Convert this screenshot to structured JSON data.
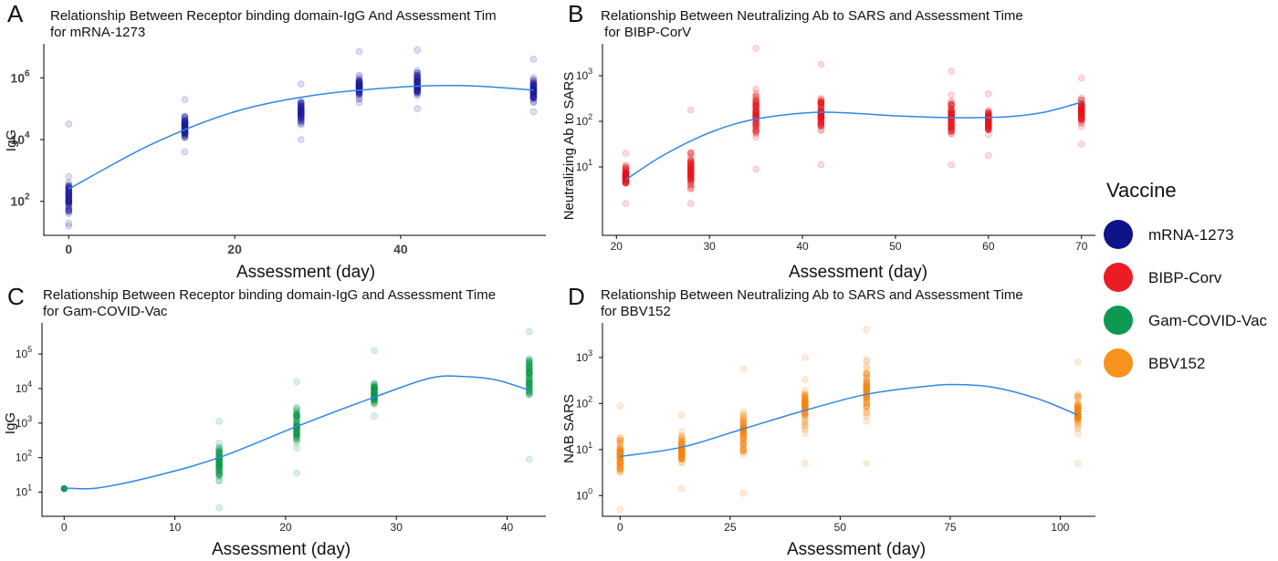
{
  "chart_data": [
    {
      "id": "A",
      "type": "scatter",
      "panel_letter": "A",
      "title_lines": [
        "Relationship Between Receptor binding domain-IgG And Assessment Tim",
        "for mRNA-1273"
      ],
      "xlabel": "Assessment (day)",
      "ylabel": "IgG",
      "color": "#1f1fa0",
      "point_alpha": 0.15,
      "xlim": [
        -3,
        57.5
      ],
      "ylim_log10": [
        0.9,
        7.1
      ],
      "y_scale": "log",
      "xticks": [
        0,
        20,
        40
      ],
      "yticks": [
        {
          "exp": 2,
          "label_base": "10",
          "label_exp": "2"
        },
        {
          "exp": 4,
          "label_base": "10",
          "label_exp": "4"
        },
        {
          "exp": 6,
          "label_base": "10",
          "label_exp": "6"
        }
      ],
      "groups": [
        {
          "x": 0,
          "log10_min": 1.2,
          "log10_max": 4.5,
          "log10_center": 2.1
        },
        {
          "x": 14,
          "log10_min": 3.6,
          "log10_max": 5.3,
          "log10_center": 4.4
        },
        {
          "x": 28,
          "log10_min": 4.0,
          "log10_max": 5.8,
          "log10_center": 4.9
        },
        {
          "x": 35,
          "log10_min": 5.2,
          "log10_max": 6.85,
          "log10_center": 5.7
        },
        {
          "x": 42,
          "log10_min": 5.0,
          "log10_max": 6.9,
          "log10_center": 5.8
        },
        {
          "x": 56,
          "log10_min": 4.9,
          "log10_max": 6.6,
          "log10_center": 5.6
        }
      ],
      "trend": [
        [
          0,
          2.4
        ],
        [
          10,
          3.85
        ],
        [
          20,
          4.9
        ],
        [
          30,
          5.45
        ],
        [
          40,
          5.7
        ],
        [
          46,
          5.75
        ],
        [
          50,
          5.72
        ],
        [
          56,
          5.6
        ]
      ]
    },
    {
      "id": "B",
      "type": "scatter",
      "panel_letter": "B",
      "title_lines": [
        "Relationship Between Neutralizing Ab to SARS and Assessment Time",
        " for BIBP-CorV"
      ],
      "xlabel": "Assessment (day)",
      "ylabel": "Neutralizing Ab to SARS",
      "color": "#e8131b",
      "point_alpha": 0.15,
      "xlim": [
        18.5,
        71.5
      ],
      "ylim_log10": [
        -0.5,
        3.7
      ],
      "y_scale": "log",
      "xticks": [
        20,
        30,
        40,
        50,
        60,
        70
      ],
      "yticks": [
        {
          "exp": 1,
          "label_base": "10",
          "label_exp": "1"
        },
        {
          "exp": 2,
          "label_base": "10",
          "label_exp": "2"
        },
        {
          "exp": 3,
          "label_base": "10",
          "label_exp": "3"
        }
      ],
      "groups": [
        {
          "x": 21,
          "log10_min": 0.2,
          "log10_max": 1.3,
          "log10_center": 0.8
        },
        {
          "x": 28,
          "log10_min": 0.2,
          "log10_max": 2.25,
          "log10_center": 0.9
        },
        {
          "x": 35,
          "log10_min": 0.95,
          "log10_max": 3.6,
          "log10_center": 2.1
        },
        {
          "x": 42,
          "log10_min": 1.05,
          "log10_max": 3.25,
          "log10_center": 2.1
        },
        {
          "x": 56,
          "log10_min": 1.05,
          "log10_max": 3.1,
          "log10_center": 2.1
        },
        {
          "x": 60,
          "log10_min": 1.25,
          "log10_max": 2.6,
          "log10_center": 2.0
        },
        {
          "x": 70,
          "log10_min": 1.5,
          "log10_max": 2.95,
          "log10_center": 2.2
        }
      ],
      "trend": [
        [
          21,
          0.72
        ],
        [
          25,
          1.25
        ],
        [
          30,
          1.75
        ],
        [
          35,
          2.05
        ],
        [
          42,
          2.2
        ],
        [
          50,
          2.12
        ],
        [
          56,
          2.08
        ],
        [
          62,
          2.1
        ],
        [
          66,
          2.2
        ],
        [
          70,
          2.42
        ]
      ]
    },
    {
      "id": "C",
      "type": "scatter",
      "panel_letter": "C",
      "title_lines": [
        "Relationship Between Receptor binding domain-IgG and Assessment Time",
        "for Gam-COVID-Vac"
      ],
      "xlabel": "Assessment (day)",
      "ylabel": "IgG",
      "color": "#0f9a4c",
      "point_alpha": 0.15,
      "xlim": [
        -2,
        43.5
      ],
      "ylim_log10": [
        0.3,
        5.9
      ],
      "y_scale": "log",
      "xticks": [
        0,
        10,
        20,
        30,
        40
      ],
      "yticks": [
        {
          "exp": 1,
          "label_base": "10",
          "label_exp": "1"
        },
        {
          "exp": 2,
          "label_base": "10",
          "label_exp": "2"
        },
        {
          "exp": 3,
          "label_base": "10",
          "label_exp": "3"
        },
        {
          "exp": 4,
          "label_base": "10",
          "label_exp": "4"
        },
        {
          "exp": 5,
          "label_base": "10",
          "label_exp": "5"
        }
      ],
      "groups": [
        {
          "x": 0,
          "log10_min": 1.1,
          "log10_max": 1.1,
          "log10_center": 1.1,
          "solid": true
        },
        {
          "x": 14,
          "log10_min": 0.55,
          "log10_max": 3.05,
          "log10_center": 1.9
        },
        {
          "x": 21,
          "log10_min": 1.55,
          "log10_max": 4.2,
          "log10_center": 2.9
        },
        {
          "x": 28,
          "log10_min": 3.2,
          "log10_max": 5.1,
          "log10_center": 3.9
        },
        {
          "x": 42,
          "log10_min": 1.95,
          "log10_max": 5.65,
          "log10_center": 4.3
        }
      ],
      "trend": [
        [
          0,
          1.12
        ],
        [
          3,
          1.12
        ],
        [
          8,
          1.45
        ],
        [
          14,
          2.0
        ],
        [
          21,
          2.9
        ],
        [
          28,
          3.75
        ],
        [
          33,
          4.3
        ],
        [
          36,
          4.35
        ],
        [
          39,
          4.25
        ],
        [
          42,
          3.95
        ]
      ]
    },
    {
      "id": "D",
      "type": "scatter",
      "panel_letter": "D",
      "title_lines": [
        "Relationship Between Neutralizing Ab to SARS and Assessment Time",
        "for BBV152"
      ],
      "xlabel": "Assessment (day)",
      "ylabel": "NAB SARS",
      "color": "#f5870f",
      "point_alpha": 0.15,
      "xlim": [
        -4,
        108
      ],
      "ylim_log10": [
        -0.45,
        3.75
      ],
      "y_scale": "log",
      "xticks": [
        0,
        25,
        50,
        75,
        100
      ],
      "yticks": [
        {
          "exp": 0,
          "label_base": "10",
          "label_exp": "0"
        },
        {
          "exp": 1,
          "label_base": "10",
          "label_exp": "1"
        },
        {
          "exp": 2,
          "label_base": "10",
          "label_exp": "2"
        },
        {
          "exp": 3,
          "label_base": "10",
          "label_exp": "3"
        }
      ],
      "groups": [
        {
          "x": 0,
          "log10_min": -0.3,
          "log10_max": 1.95,
          "log10_center": 0.85
        },
        {
          "x": 14,
          "log10_min": 0.15,
          "log10_max": 1.75,
          "log10_center": 1.0
        },
        {
          "x": 28,
          "log10_min": 0.05,
          "log10_max": 2.75,
          "log10_center": 1.4
        },
        {
          "x": 42,
          "log10_min": 0.7,
          "log10_max": 3.0,
          "log10_center": 1.9
        },
        {
          "x": 56,
          "log10_min": 0.7,
          "log10_max": 3.6,
          "log10_center": 2.3
        },
        {
          "x": 104,
          "log10_min": 0.7,
          "log10_max": 2.9,
          "log10_center": 1.8
        }
      ],
      "trend": [
        [
          0,
          0.85
        ],
        [
          14,
          1.05
        ],
        [
          28,
          1.45
        ],
        [
          42,
          1.85
        ],
        [
          56,
          2.2
        ],
        [
          70,
          2.38
        ],
        [
          77,
          2.41
        ],
        [
          85,
          2.35
        ],
        [
          95,
          2.1
        ],
        [
          104,
          1.75
        ]
      ]
    }
  ],
  "legend": {
    "title": "Vaccine",
    "placement": "right",
    "items": [
      {
        "label": "mRNA-1273",
        "color": "#0e1488"
      },
      {
        "label": "BIBP-Corv",
        "color": "#ec1c24"
      },
      {
        "label": "Gam-COVID-Vac",
        "color": "#0d9950"
      },
      {
        "label": "BBV152",
        "color": "#f7931e"
      }
    ]
  }
}
